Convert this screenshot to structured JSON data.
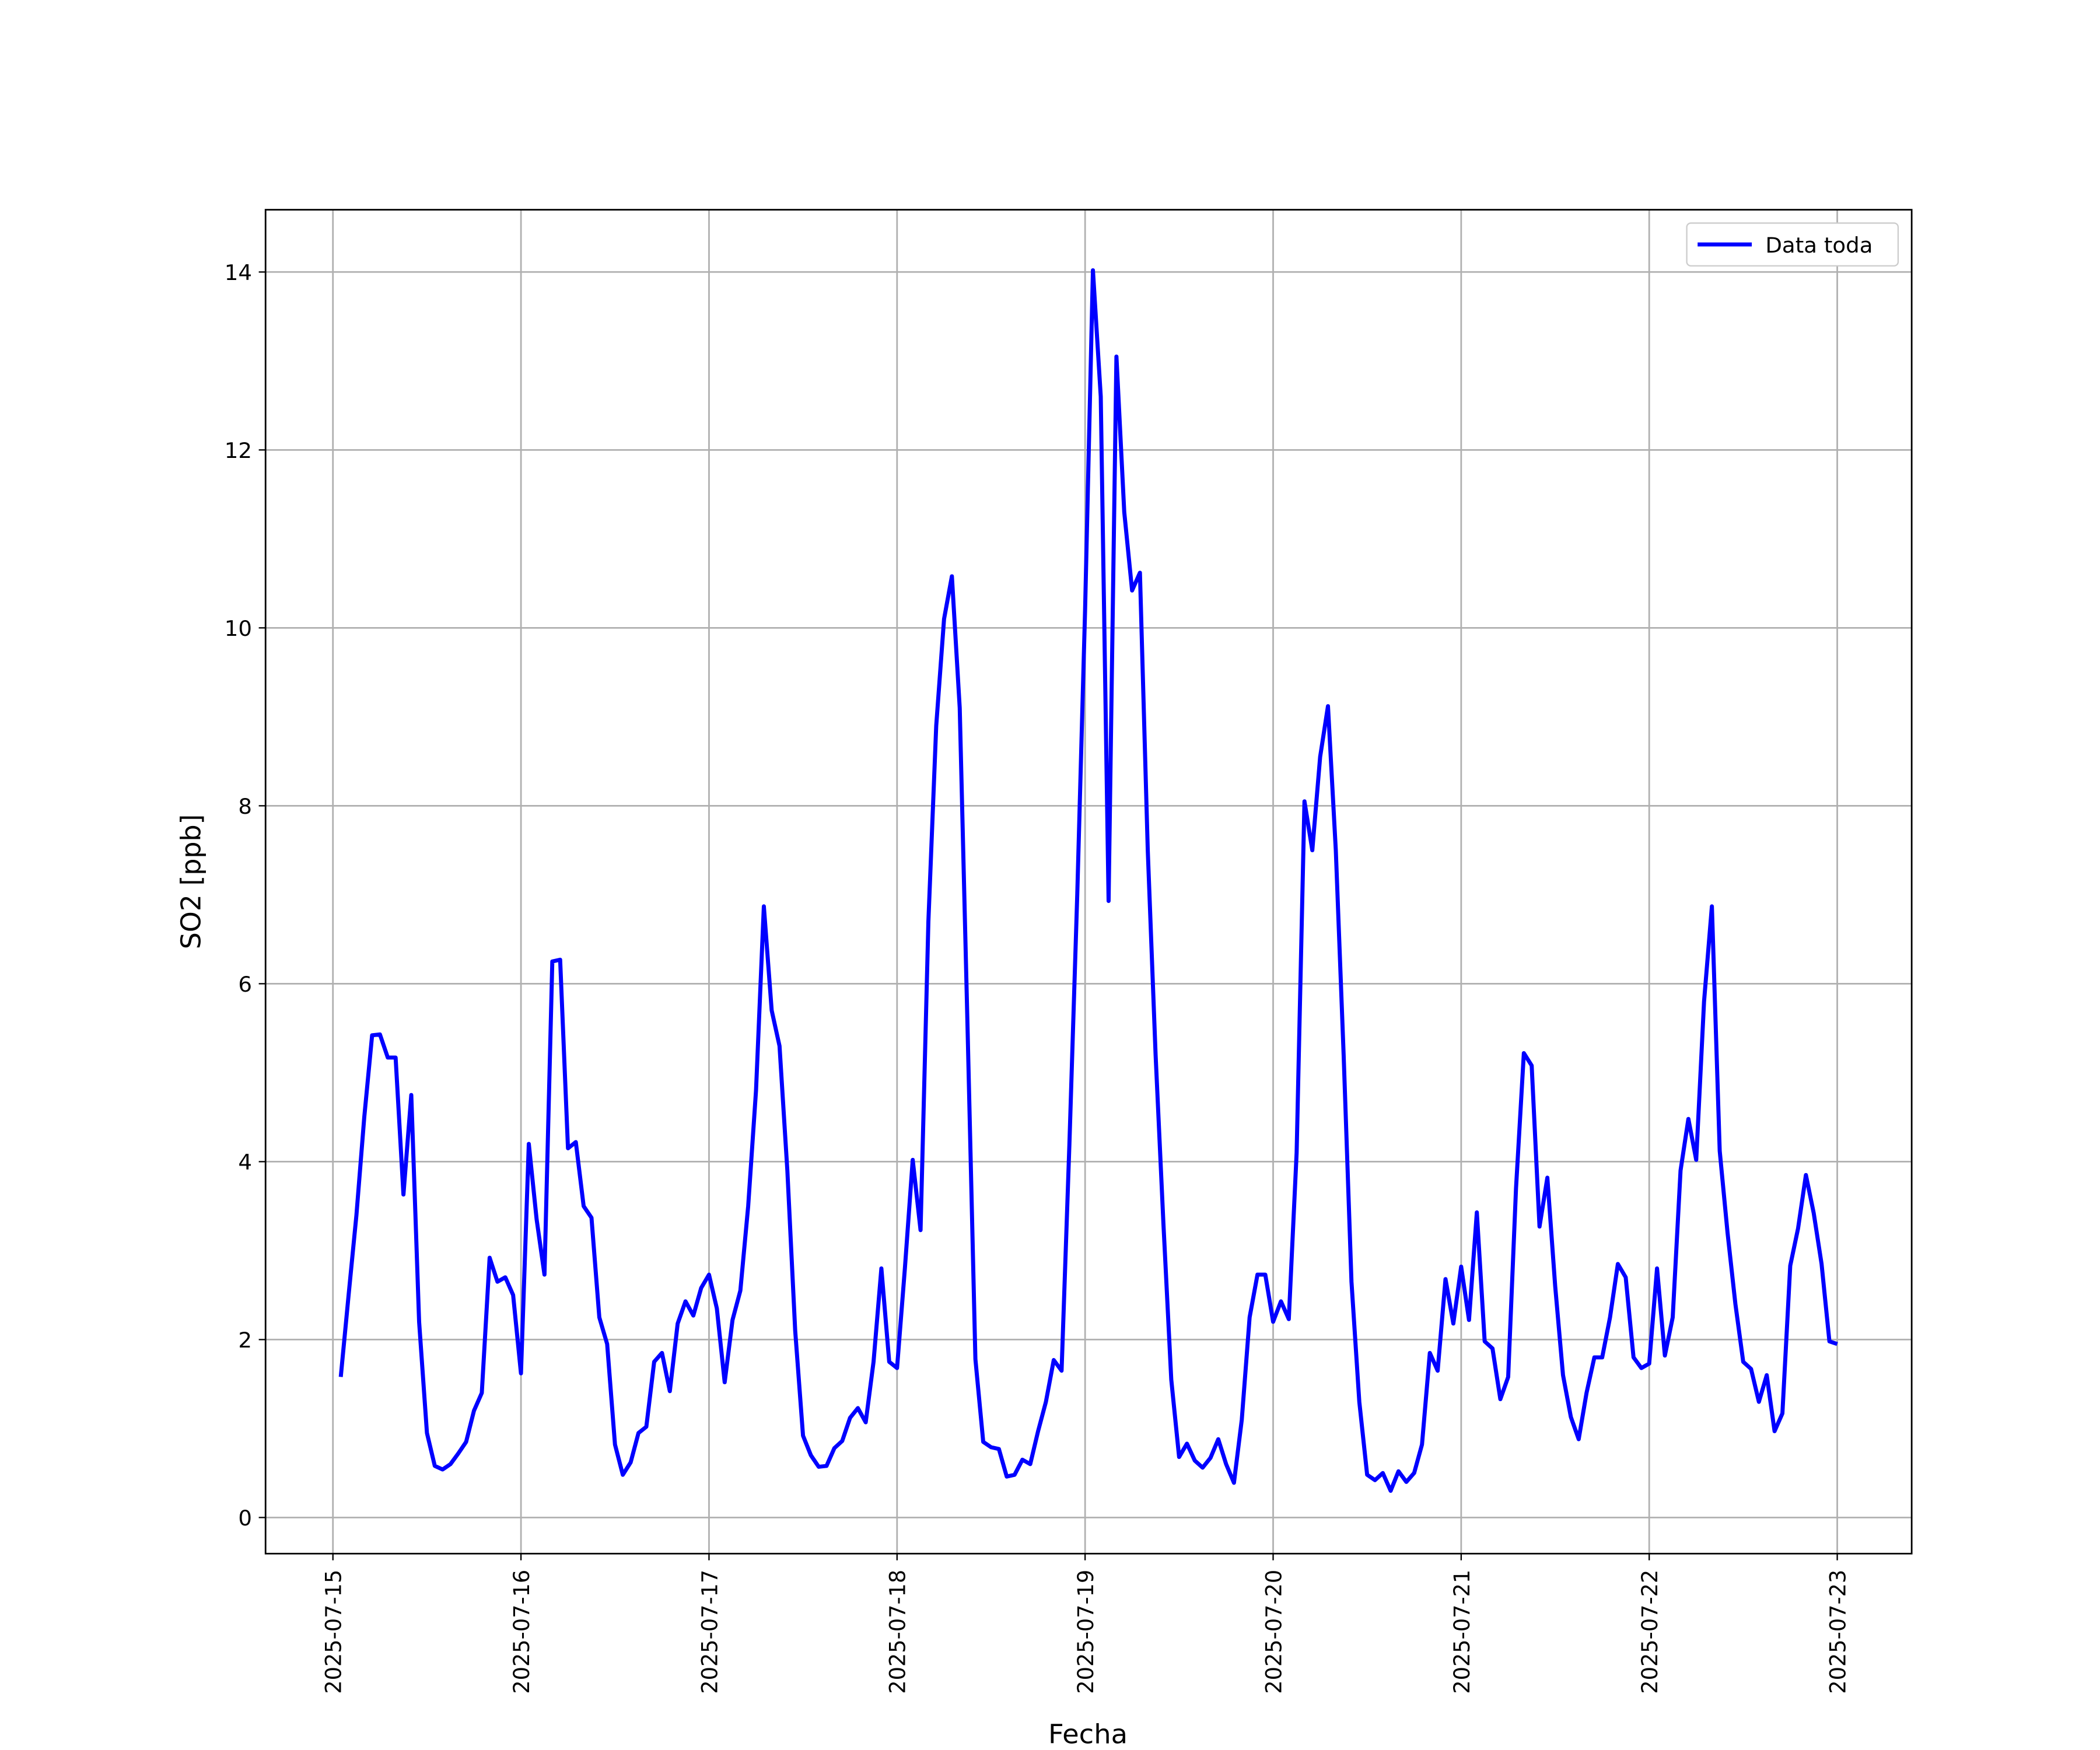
{
  "chart_data": {
    "type": "line",
    "xlabel": "Fecha",
    "ylabel": "SO2 [ppb]",
    "x": [
      1,
      2,
      3,
      4,
      5,
      6,
      7,
      8,
      9,
      10,
      11,
      12,
      13,
      14,
      15,
      16,
      17,
      18,
      19,
      20,
      21,
      22,
      23,
      24,
      25,
      26,
      27,
      28,
      29,
      30,
      31,
      32,
      33,
      34,
      35,
      36,
      37,
      38,
      39,
      40,
      41,
      42,
      43,
      44,
      45,
      46,
      47,
      48,
      49,
      50,
      51,
      52,
      53,
      54,
      55,
      56,
      57,
      58,
      59,
      60,
      61,
      62,
      63,
      64,
      65,
      66,
      67,
      68,
      69,
      70,
      71,
      72,
      73,
      74,
      75,
      76,
      77,
      78,
      79,
      80,
      81,
      82,
      83,
      84,
      85,
      86,
      87,
      88,
      89,
      90,
      91,
      92,
      93,
      94,
      95,
      96,
      97,
      98,
      99,
      100,
      101,
      102,
      103,
      104,
      105,
      106,
      107,
      108,
      109,
      110,
      111,
      112,
      113,
      114,
      115,
      116,
      117,
      118,
      119,
      120,
      121,
      122,
      123,
      124,
      125,
      126,
      127,
      128,
      129,
      130,
      131,
      132,
      133,
      134,
      135,
      136,
      137,
      138,
      139,
      140,
      141,
      142,
      143,
      144,
      145,
      146,
      147,
      148,
      149,
      150,
      151,
      152,
      153,
      154,
      155,
      156,
      157,
      158,
      159,
      160,
      161,
      162,
      163,
      164,
      165,
      166,
      167,
      168,
      169,
      170,
      171,
      172,
      173,
      174,
      175,
      176,
      177,
      178,
      179,
      180,
      181,
      182,
      183,
      184,
      185,
      186,
      187,
      188,
      189,
      190,
      191,
      192
    ],
    "series": [
      {
        "name": "Data toda",
        "color": "#0000ff",
        "values": [
          1.58,
          2.5,
          3.4,
          4.5,
          5.42,
          5.43,
          5.17,
          5.17,
          3.63,
          4.75,
          2.2,
          0.95,
          0.58,
          0.54,
          0.6,
          0.72,
          0.85,
          1.2,
          1.4,
          2.92,
          2.65,
          2.7,
          2.5,
          1.62,
          4.2,
          3.35,
          2.73,
          6.25,
          6.27,
          4.15,
          4.22,
          3.5,
          3.37,
          2.25,
          1.95,
          0.82,
          0.48,
          0.62,
          0.95,
          1.02,
          1.75,
          1.85,
          1.42,
          2.18,
          2.43,
          2.27,
          2.58,
          2.73,
          2.35,
          1.52,
          2.22,
          2.55,
          3.5,
          4.8,
          6.87,
          5.7,
          5.3,
          3.9,
          2.1,
          0.92,
          0.7,
          0.57,
          0.58,
          0.78,
          0.86,
          1.12,
          1.23,
          1.07,
          1.75,
          2.8,
          1.75,
          1.68,
          2.8,
          4.02,
          3.23,
          6.7,
          8.9,
          10.1,
          10.58,
          9.1,
          5.5,
          1.78,
          0.85,
          0.79,
          0.77,
          0.46,
          0.48,
          0.65,
          0.6,
          0.97,
          1.3,
          1.77,
          1.65,
          4.2,
          7,
          10.2,
          14.02,
          12.6,
          6.93,
          13.05,
          11.3,
          10.42,
          10.62,
          7.5,
          5.2,
          3.3,
          1.55,
          0.68,
          0.83,
          0.64,
          0.56,
          0.67,
          0.88,
          0.6,
          0.39,
          1.1,
          2.25,
          2.73,
          2.73,
          2.2,
          2.43,
          2.23,
          4.1,
          8.05,
          7.5,
          8.55,
          9.12,
          7.5,
          5.2,
          2.65,
          1.3,
          0.48,
          0.42,
          0.5,
          0.3,
          0.52,
          0.4,
          0.5,
          0.82,
          1.85,
          1.65,
          2.68,
          2.18,
          2.82,
          2.22,
          3.43,
          1.98,
          1.9,
          1.33,
          1.58,
          3.7,
          5.22,
          5.08,
          3.27,
          3.82,
          2.6,
          1.6,
          1.13,
          0.88,
          1.4,
          1.8,
          1.8,
          2.25,
          2.85,
          2.7,
          1.8,
          1.68,
          1.73,
          2.8,
          1.82,
          2.25,
          3.9,
          4.48,
          4.02,
          5.8,
          6.87,
          4.12,
          3.2,
          2.4,
          1.75,
          1.67,
          1.3,
          1.6,
          0.97,
          1.17,
          2.83,
          3.25,
          3.85,
          3.42,
          2.85,
          1.98,
          1.95
        ]
      }
    ],
    "xlim": [
      -8.6,
      201.5
    ],
    "xticks": [
      {
        "value": 0,
        "label": "2025-07-15"
      },
      {
        "value": 24,
        "label": "2025-07-16"
      },
      {
        "value": 48,
        "label": "2025-07-17"
      },
      {
        "value": 72,
        "label": "2025-07-18"
      },
      {
        "value": 96,
        "label": "2025-07-19"
      },
      {
        "value": 120,
        "label": "2025-07-20"
      },
      {
        "value": 144,
        "label": "2025-07-21"
      },
      {
        "value": 168,
        "label": "2025-07-22"
      },
      {
        "value": 192,
        "label": "2025-07-23"
      }
    ],
    "ylim": [
      -0.406,
      14.7
    ],
    "yticks": [
      0,
      2,
      4,
      6,
      8,
      10,
      12,
      14
    ],
    "grid": true,
    "legend": "upper right"
  }
}
